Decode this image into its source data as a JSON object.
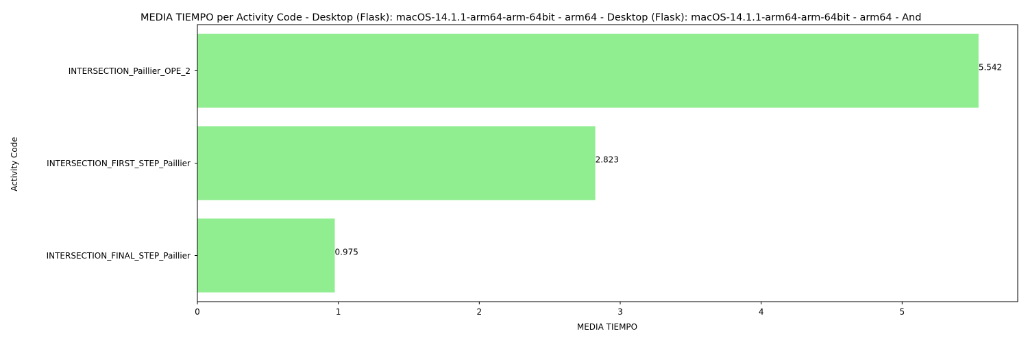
{
  "colors": {
    "bar": "#90ee90",
    "axis": "#000000",
    "background": "#ffffff"
  },
  "chart_data": {
    "type": "bar",
    "orientation": "horizontal",
    "title": "MEDIA TIEMPO per Activity Code - Desktop (Flask): macOS-14.1.1-arm64-arm-64bit - arm64 - Desktop (Flask): macOS-14.1.1-arm64-arm-64bit - arm64 - And",
    "xlabel": "MEDIA TIEMPO",
    "ylabel": "Activity Code",
    "categories": [
      "INTERSECTION_Paillier_OPE_2",
      "INTERSECTION_FIRST_STEP_Paillier",
      "INTERSECTION_FINAL_STEP_Paillier"
    ],
    "values": [
      5.542,
      2.823,
      0.975
    ],
    "data_labels": [
      "5.542",
      "2.823",
      "0.975"
    ],
    "xlim": [
      0,
      5.82
    ],
    "xticks": [
      0,
      1,
      2,
      3,
      4,
      5
    ],
    "xtick_labels": [
      "0",
      "1",
      "2",
      "3",
      "4",
      "5"
    ],
    "grid": false,
    "legend": "none"
  }
}
